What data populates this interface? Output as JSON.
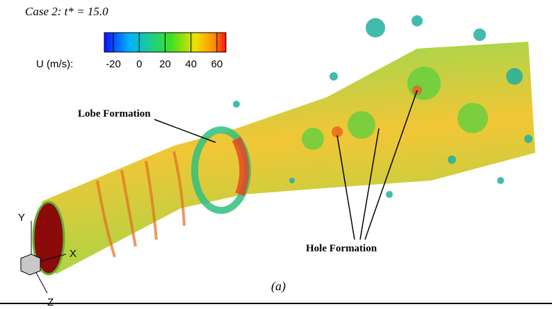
{
  "caption": "Case 2: t* = 15.0",
  "colorbar": {
    "label": "U (m/s):",
    "lim": [
      -27,
      67
    ],
    "ticks": [
      -20,
      0,
      20,
      40,
      60
    ]
  },
  "annotations": {
    "lobe": "Lobe Formation",
    "hole": "Hole Formation"
  },
  "axes_triad": {
    "y": "Y",
    "x": "X",
    "z": "Z"
  },
  "panel_label": "(a)"
}
